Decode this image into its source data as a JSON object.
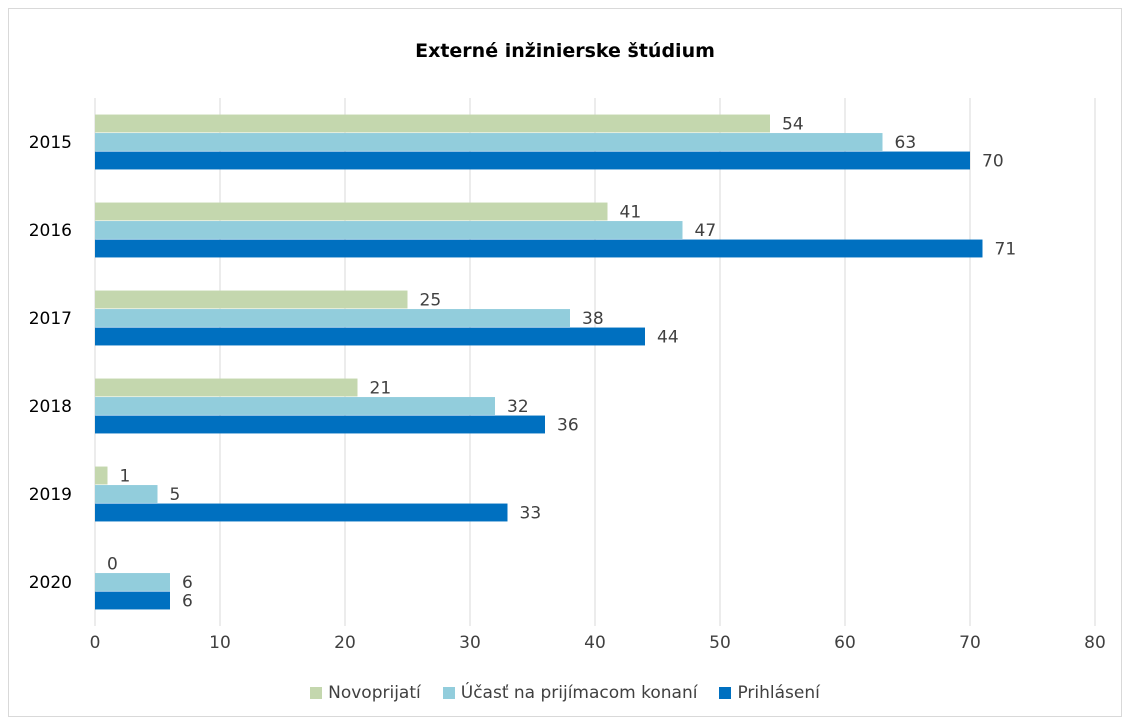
{
  "chart_data": {
    "type": "bar",
    "orientation": "horizontal",
    "title": "Externé inžinierske štúdium",
    "categories": [
      "2015",
      "2016",
      "2017",
      "2018",
      "2019",
      "2020"
    ],
    "series": [
      {
        "name": "Novoprijatí",
        "color": "#c4d7ae",
        "values": [
          54,
          41,
          25,
          21,
          1,
          0
        ]
      },
      {
        "name": "Účasť na prijímacom konaní",
        "color": "#92cddc",
        "values": [
          63,
          47,
          38,
          32,
          5,
          6
        ]
      },
      {
        "name": "Prihlásení",
        "color": "#0070c0",
        "values": [
          70,
          71,
          44,
          36,
          33,
          6
        ]
      }
    ],
    "xlim": [
      0,
      80
    ],
    "xticks": [
      "0",
      "10",
      "20",
      "30",
      "40",
      "50",
      "60",
      "70",
      "80"
    ],
    "grid": true,
    "legend_position": "bottom",
    "data_labels": true,
    "axis_text_color": "#404040",
    "grid_color": "#d9d9d9"
  }
}
